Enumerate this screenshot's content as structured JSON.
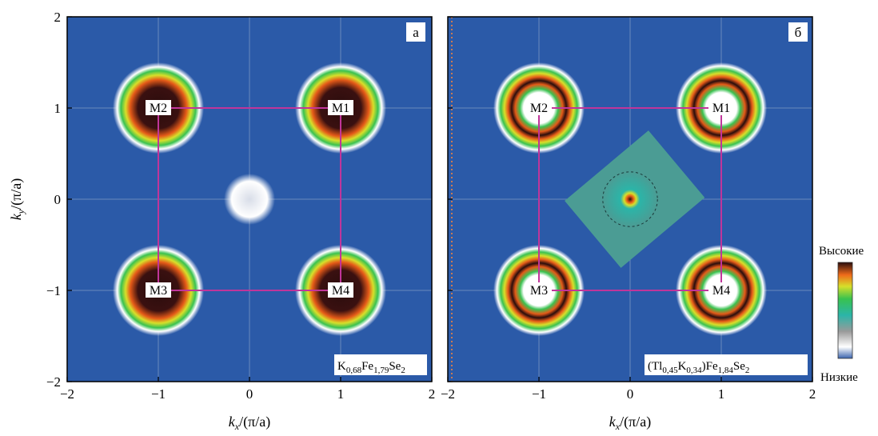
{
  "chart_data": [
    {
      "type": "heatmap",
      "panel_label": "а",
      "sample": {
        "base": "K",
        "k": "0,68",
        "mid": "Fe",
        "fe": "1,79",
        "end": "Se",
        "se": "2"
      },
      "xlabel": {
        "k": "k",
        "sub": "x",
        "tail": "/(π/a)"
      },
      "ylabel": {
        "k": "k",
        "sub": "y",
        "tail": "/(π/a)"
      },
      "xlim": [
        -2,
        2
      ],
      "ylim": [
        -2,
        2
      ],
      "xticks": [
        "−2",
        "−1",
        "0",
        "1",
        "2"
      ],
      "yticks": [
        "2",
        "1",
        "0",
        "−1",
        "−2"
      ],
      "brillouin_zone": [
        [
          -1,
          -1
        ],
        [
          1,
          -1
        ],
        [
          1,
          1
        ],
        [
          -1,
          1
        ]
      ],
      "points": [
        {
          "label": "M1",
          "x": 1,
          "y": 1
        },
        {
          "label": "M2",
          "x": -1,
          "y": 1
        },
        {
          "label": "M3",
          "x": -1,
          "y": -1
        },
        {
          "label": "M4",
          "x": 1,
          "y": -1
        }
      ]
    },
    {
      "type": "heatmap",
      "panel_label": "б",
      "sample": {
        "base": "(Tl",
        "tl": "0,45",
        "k2": "K",
        "k": "0,34",
        "mid": ")Fe",
        "fe": "1,84",
        "end": "Se",
        "se": "2"
      },
      "xlabel": {
        "k": "k",
        "sub": "x",
        "tail": "/(π/a)"
      },
      "xlim": [
        -2,
        2
      ],
      "ylim": [
        -2,
        2
      ],
      "xticks": [
        "−2",
        "−1",
        "0",
        "1",
        "2"
      ],
      "brillouin_zone": [
        [
          -1,
          -1
        ],
        [
          1,
          -1
        ],
        [
          1,
          1
        ],
        [
          -1,
          1
        ]
      ],
      "points": [
        {
          "label": "M1",
          "x": 1,
          "y": 1
        },
        {
          "label": "M2",
          "x": -1,
          "y": 1
        },
        {
          "label": "M3",
          "x": -1,
          "y": -1
        },
        {
          "label": "M4",
          "x": 1,
          "y": -1
        }
      ]
    }
  ],
  "colorbar": {
    "high": "Высокие",
    "low": "Низкие",
    "colors": [
      "#3a63ad",
      "#ffffff",
      "#2bb5a8",
      "#38c24f",
      "#d6df2a",
      "#ef6a1a",
      "#2a0d0d"
    ]
  },
  "colors": {
    "background": "#2b5aa8",
    "zone": "#c0359a",
    "grid": "#9fb3cc"
  }
}
